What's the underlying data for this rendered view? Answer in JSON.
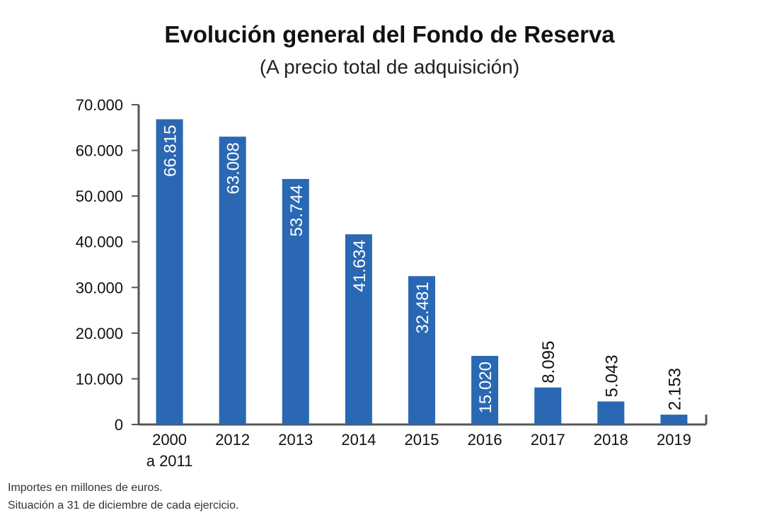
{
  "header": {
    "title": "Evolución general del Fondo de Reserva",
    "subtitle": "(A precio total de adquisición)"
  },
  "footnotes": [
    "Importes en millones de euros.",
    "Situación a 31 de diciembre de cada ejercicio."
  ],
  "colors": {
    "bar": "#2a68b3",
    "axis": "#555555",
    "label_inside": "#ffffff",
    "label_outside": "#111111"
  },
  "chart_data": {
    "type": "bar",
    "title": "Evolución general del Fondo de Reserva",
    "subtitle": "(A precio total de adquisición)",
    "xlabel": "",
    "ylabel": "",
    "categories": [
      [
        "2000",
        "a 2011"
      ],
      [
        "2012"
      ],
      [
        "2013"
      ],
      [
        "2014"
      ],
      [
        "2015"
      ],
      [
        "2016"
      ],
      [
        "2017"
      ],
      [
        "2018"
      ],
      [
        "2019"
      ]
    ],
    "values": [
      66815,
      63008,
      53744,
      41634,
      32481,
      15020,
      8095,
      5043,
      2153
    ],
    "value_labels": [
      "66.815",
      "63.008",
      "53.744",
      "41.634",
      "32.481",
      "15.020",
      "8.095",
      "5.043",
      "2.153"
    ],
    "label_position": [
      "inside",
      "inside",
      "inside",
      "inside",
      "inside",
      "inside",
      "above",
      "above",
      "above"
    ],
    "ylim": [
      0,
      70000
    ],
    "yticks": [
      0,
      10000,
      20000,
      30000,
      40000,
      50000,
      60000,
      70000
    ],
    "ytick_labels": [
      "0",
      "10.000",
      "20.000",
      "30.000",
      "40.000",
      "50.000",
      "60.000",
      "70.000"
    ],
    "grid": false,
    "legend": "none",
    "label_orientation": "vertical"
  }
}
